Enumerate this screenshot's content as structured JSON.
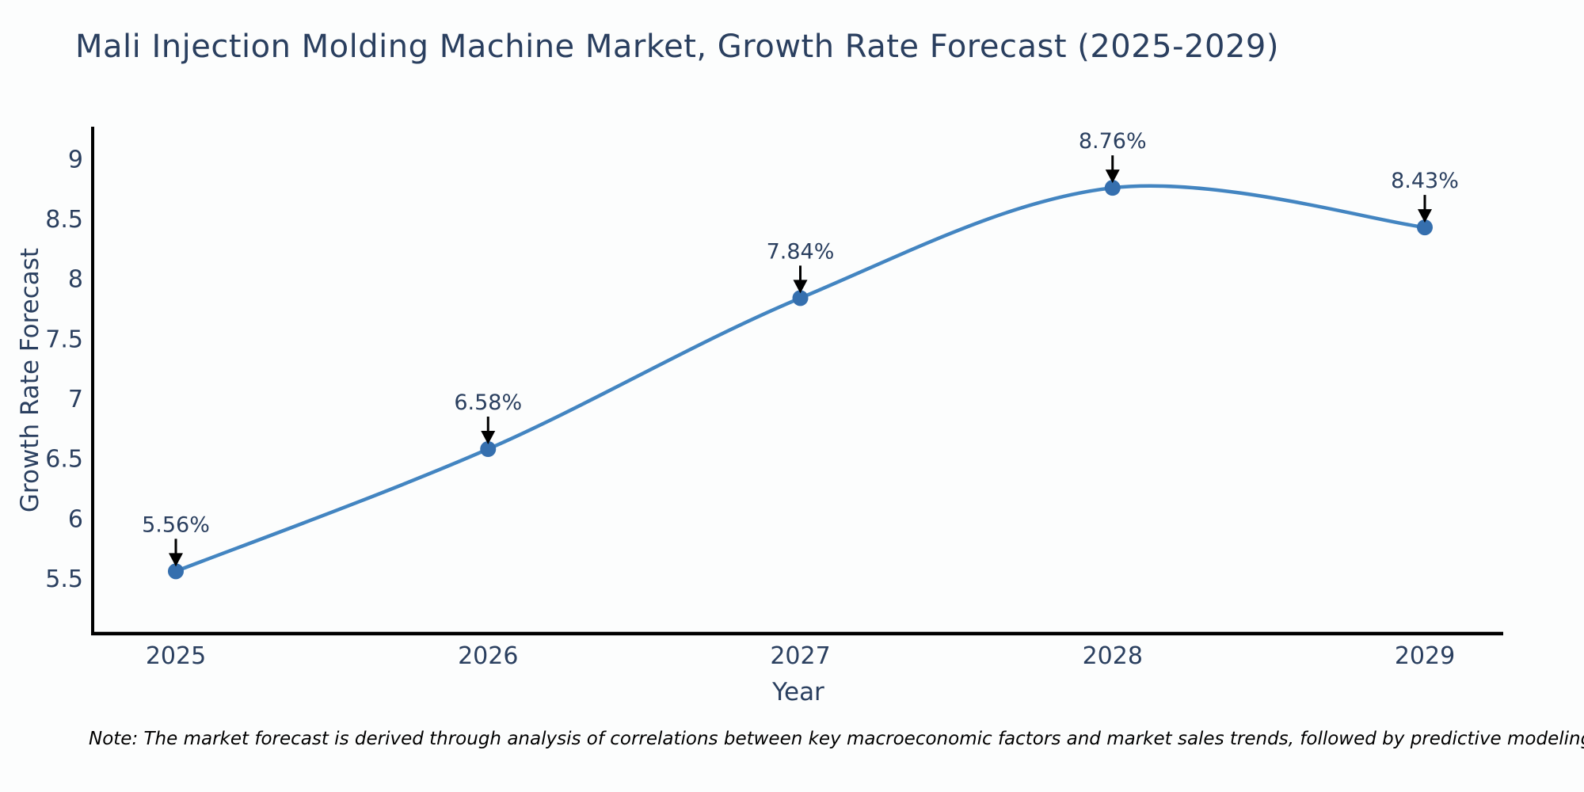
{
  "title": "Mali Injection Molding Machine Market, Growth Rate Forecast (2025-2029)",
  "note": "Note: The market forecast is derived through analysis of correlations between key macroeconomic factors and market sales trends, followed by predictive modeling to project future sales",
  "chart_data": {
    "type": "line",
    "line_shape": "spline",
    "title": "Mali Injection Molding Machine Market, Growth Rate Forecast (2025-2029)",
    "xlabel": "Year",
    "ylabel": "Growth Rate Forecast",
    "categories": [
      "2025",
      "2026",
      "2027",
      "2028",
      "2029"
    ],
    "values": [
      5.56,
      6.58,
      7.84,
      8.76,
      8.43
    ],
    "point_labels": [
      "5.56%",
      "6.58%",
      "7.84%",
      "8.76%",
      "8.43%"
    ],
    "yticks": [
      5.5,
      6,
      6.5,
      7,
      7.5,
      8,
      8.5,
      9
    ],
    "ylim": [
      5.04,
      9.27
    ],
    "grid": false,
    "legend": false,
    "annotations_have_arrows": true,
    "colors": {
      "line": "#4385c1",
      "marker": "#356fae",
      "arrow": "#000000",
      "text": "#2a3f5f",
      "axis_line": "#000000"
    }
  }
}
